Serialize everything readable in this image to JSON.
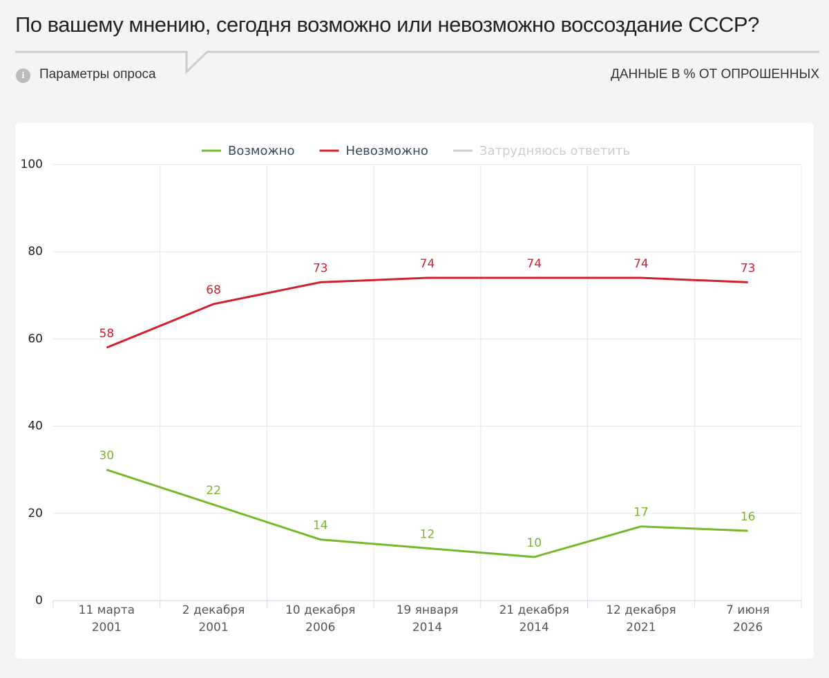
{
  "header": {
    "title": "По вашему мнению, сегодня возможно или невозможно воссоздание СССР?",
    "params_label": "Параметры опроса",
    "units_label": "ДАННЫЕ В % ОТ ОПРОШЕННЫХ"
  },
  "chart_data": {
    "type": "line",
    "categories": [
      "11 марта\n2001",
      "2 декабря\n2001",
      "10 декабря\n2006",
      "19 января\n2014",
      "21 декабря\n2014",
      "12 декабря\n2021",
      "7 июня\n2026"
    ],
    "series": [
      {
        "name": "Возможно",
        "color": "#76b82a",
        "values": [
          30,
          22,
          14,
          12,
          10,
          17,
          16
        ]
      },
      {
        "name": "Невозможно",
        "color": "#d0202e",
        "values": [
          58,
          68,
          73,
          74,
          74,
          74,
          73
        ]
      },
      {
        "name": "Затрудняюсь ответить",
        "color": "#cccccc",
        "visible": false,
        "values": [
          null,
          null,
          null,
          null,
          null,
          null,
          null
        ]
      }
    ],
    "ylim": [
      0,
      100
    ],
    "yticks": [
      0,
      20,
      40,
      60,
      80,
      100
    ],
    "grid": true,
    "legend": "top"
  }
}
